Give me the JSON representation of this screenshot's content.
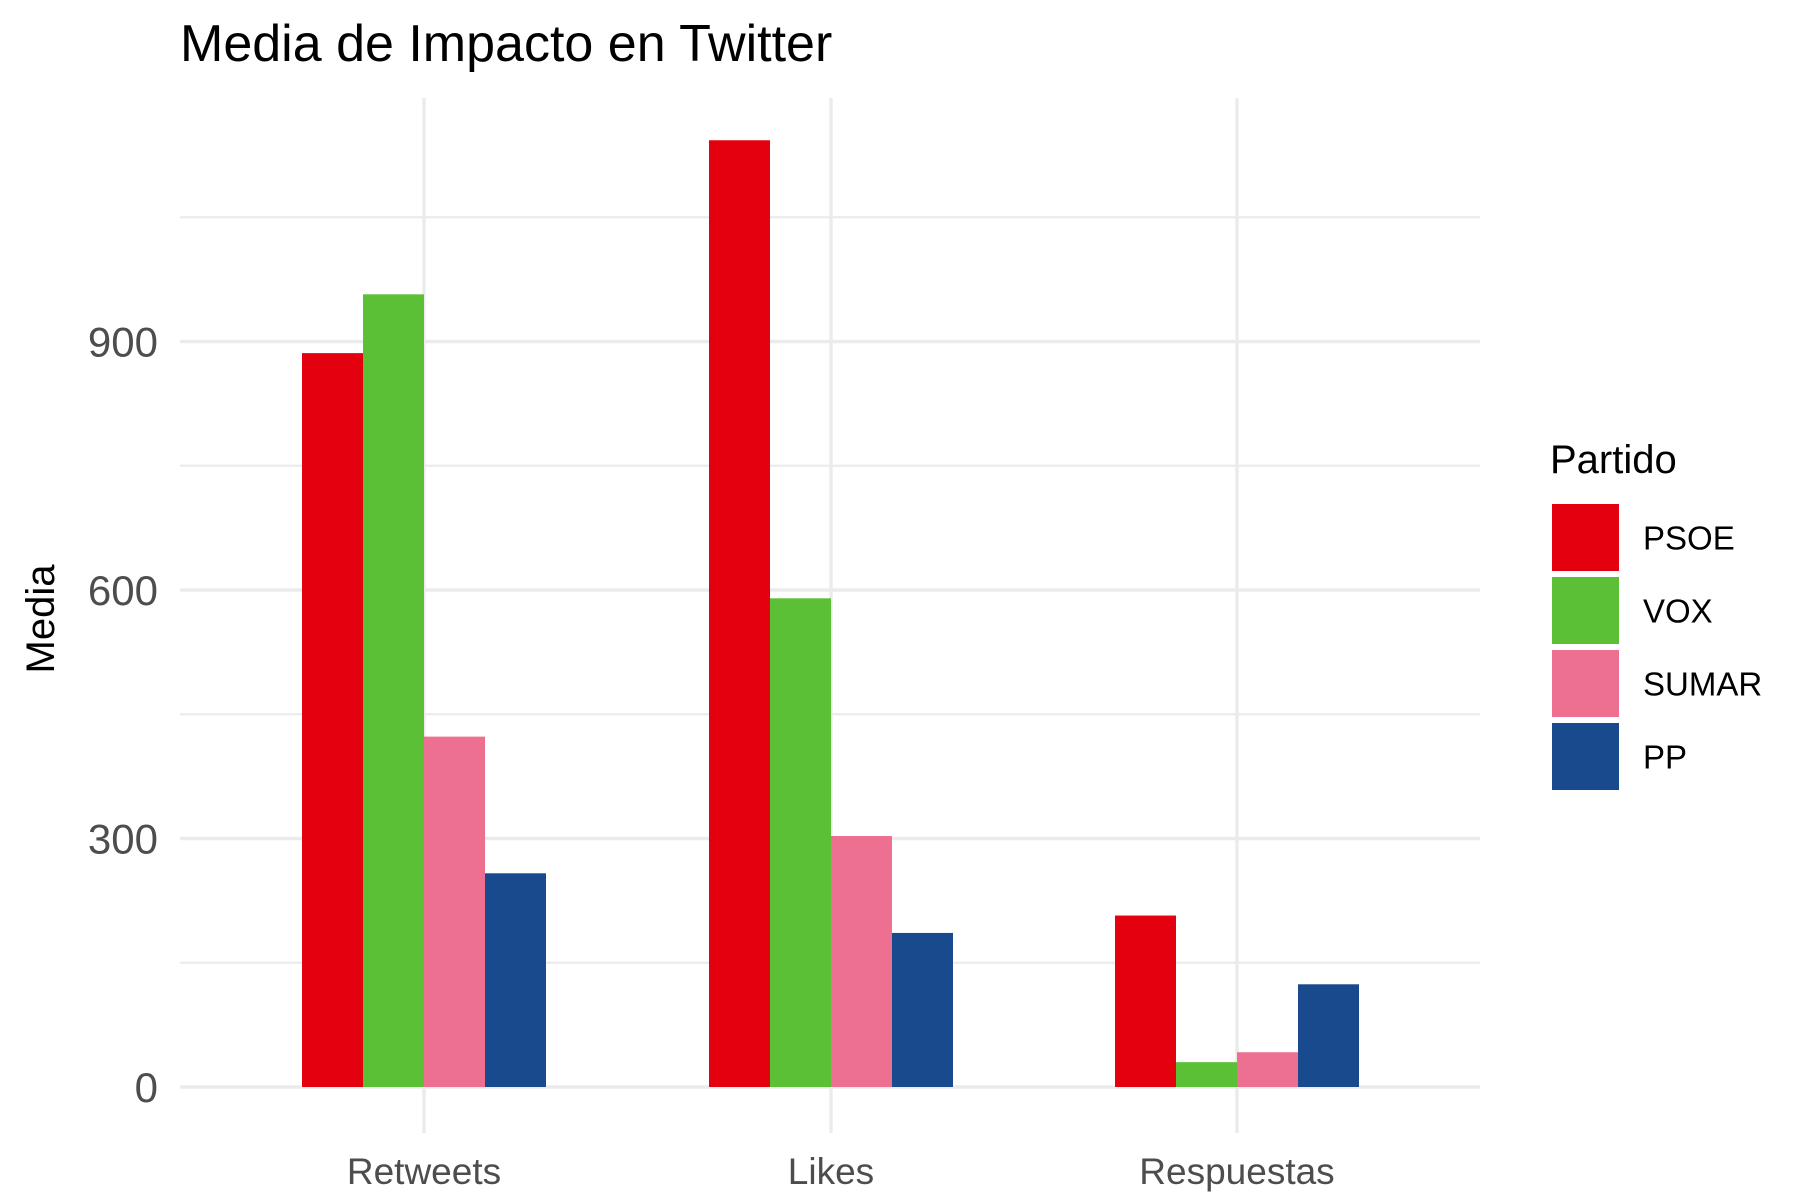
{
  "chart_data": {
    "type": "bar",
    "title": "Media de Impacto en Twitter",
    "xlabel": "",
    "ylabel": "Media",
    "categories": [
      "Retweets",
      "Likes",
      "Respuestas"
    ],
    "series": [
      {
        "name": "PSOE",
        "color": "#E3000F",
        "values": [
          886,
          1143,
          207
        ]
      },
      {
        "name": "VOX",
        "color": "#5BC035",
        "values": [
          957,
          590,
          30
        ]
      },
      {
        "name": "SUMAR",
        "color": "#ED7091",
        "values": [
          423,
          303,
          42
        ]
      },
      {
        "name": "PP",
        "color": "#1A4A8E",
        "values": [
          258,
          186,
          124
        ]
      }
    ],
    "yticks": [
      0,
      300,
      600,
      900
    ],
    "ylim": [
      0,
      1200
    ],
    "grid": true,
    "legend": {
      "title": "Partido",
      "position": "right"
    }
  }
}
